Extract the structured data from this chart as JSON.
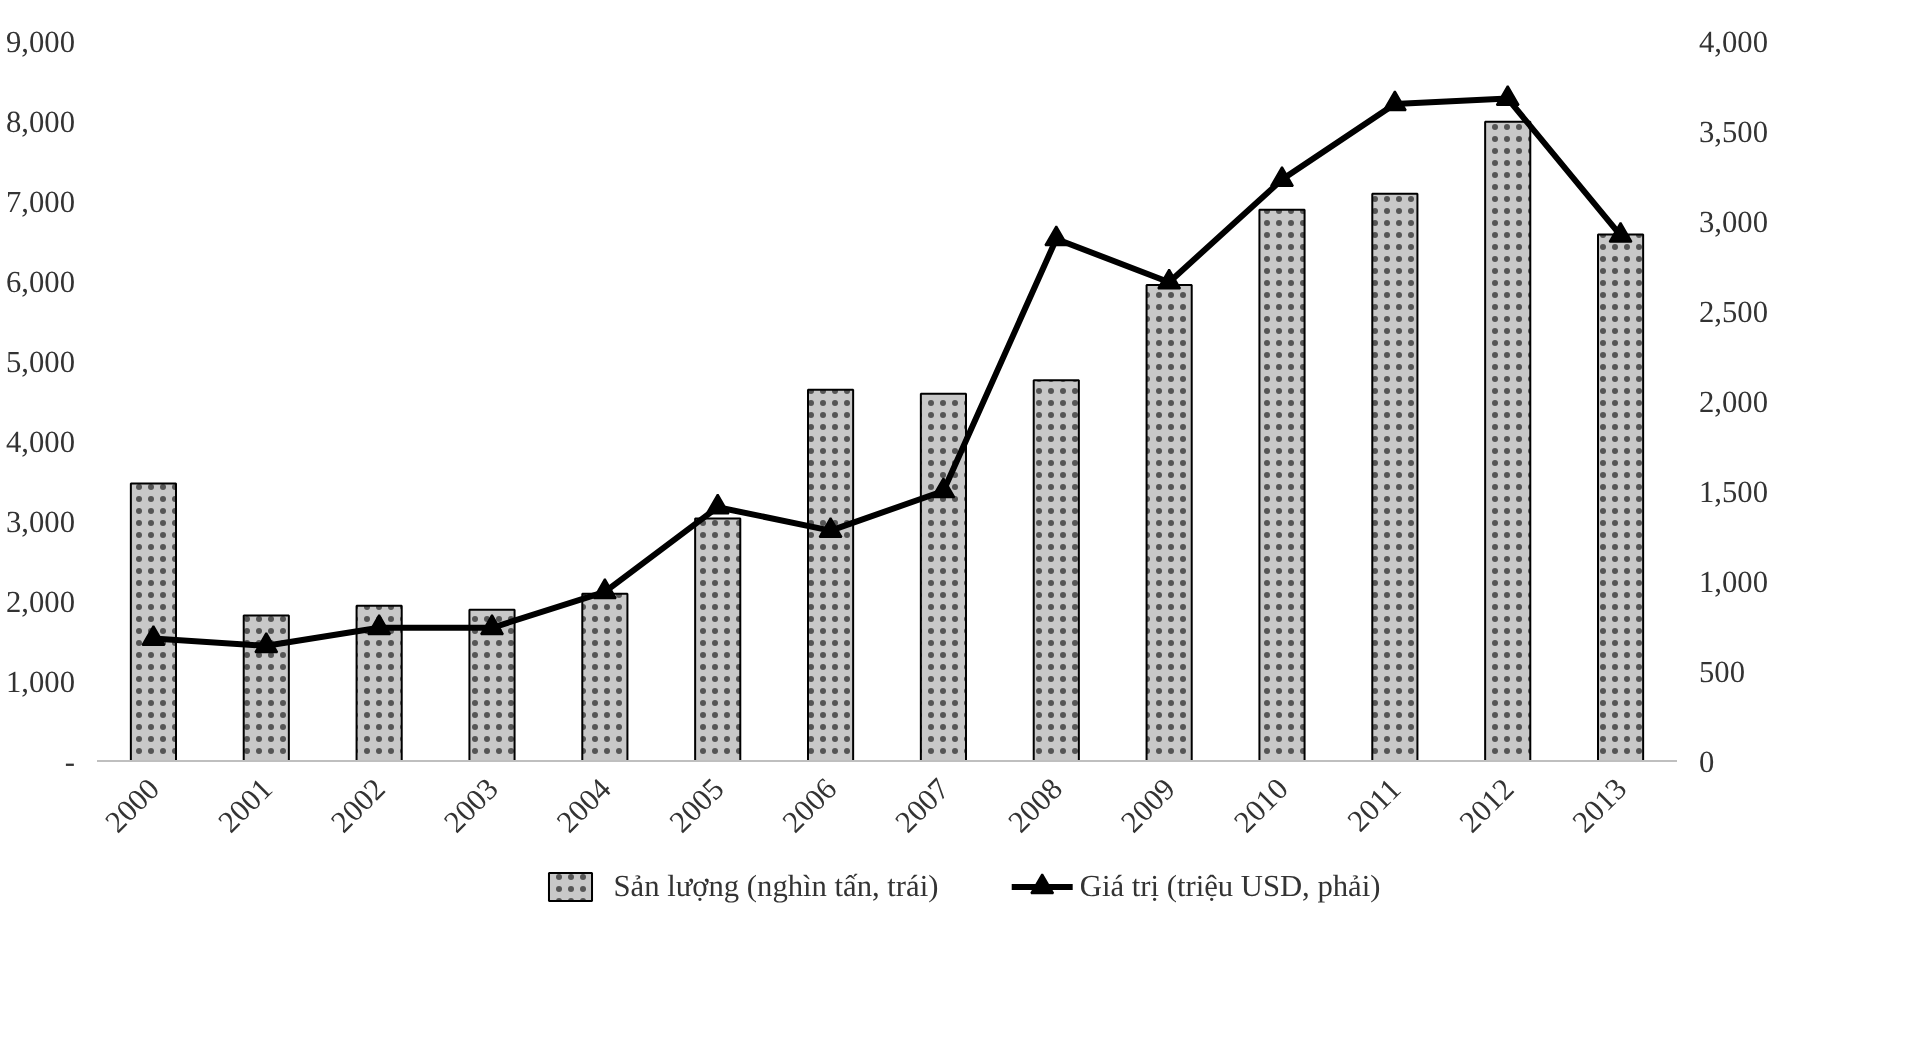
{
  "chart_data": {
    "type": "bar",
    "categories": [
      "2000",
      "2001",
      "2002",
      "2003",
      "2004",
      "2005",
      "2006",
      "2007",
      "2008",
      "2009",
      "2010",
      "2011",
      "2012",
      "2013"
    ],
    "series": [
      {
        "name": "Sản lượng (nghìn tấn, trái)",
        "color": "#c8c8c8",
        "values": [
          3470,
          1820,
          1940,
          1890,
          2090,
          3030,
          4640,
          4590,
          4760,
          5950,
          6890,
          7090,
          7990,
          6580
        ]
      },
      {
        "name": "Giá trị (triệu USD, phải)",
        "type": "line",
        "axis": "y2",
        "color": "#000000",
        "marker": "triangle",
        "values": [
          680,
          640,
          740,
          740,
          940,
          1410,
          1280,
          1500,
          2900,
          2660,
          3230,
          3650,
          3680,
          2920
        ]
      }
    ],
    "ylim": [
      0,
      9000
    ],
    "yticks": [
      {
        "value": 0,
        "label": "-"
      },
      {
        "value": 1000,
        "label": "1,000"
      },
      {
        "value": 2000,
        "label": "2,000"
      },
      {
        "value": 3000,
        "label": "3,000"
      },
      {
        "value": 4000,
        "label": "4,000"
      },
      {
        "value": 5000,
        "label": "5,000"
      },
      {
        "value": 6000,
        "label": "6,000"
      },
      {
        "value": 7000,
        "label": "7,000"
      },
      {
        "value": 8000,
        "label": "8,000"
      },
      {
        "value": 9000,
        "label": "9,000"
      }
    ],
    "y2lim": [
      0,
      4000
    ],
    "y2ticks": [
      0,
      500,
      {
        "value": 1000,
        "label": "1,000"
      },
      {
        "value": 1500,
        "label": "1,500"
      },
      {
        "value": 2000,
        "label": "2,000"
      },
      {
        "value": 2500,
        "label": "2,500"
      },
      {
        "value": 3000,
        "label": "3,000"
      },
      {
        "value": 3500,
        "label": "3,500"
      },
      {
        "value": 4000,
        "label": "4,000"
      }
    ],
    "grid": false,
    "legend": "bottom"
  }
}
